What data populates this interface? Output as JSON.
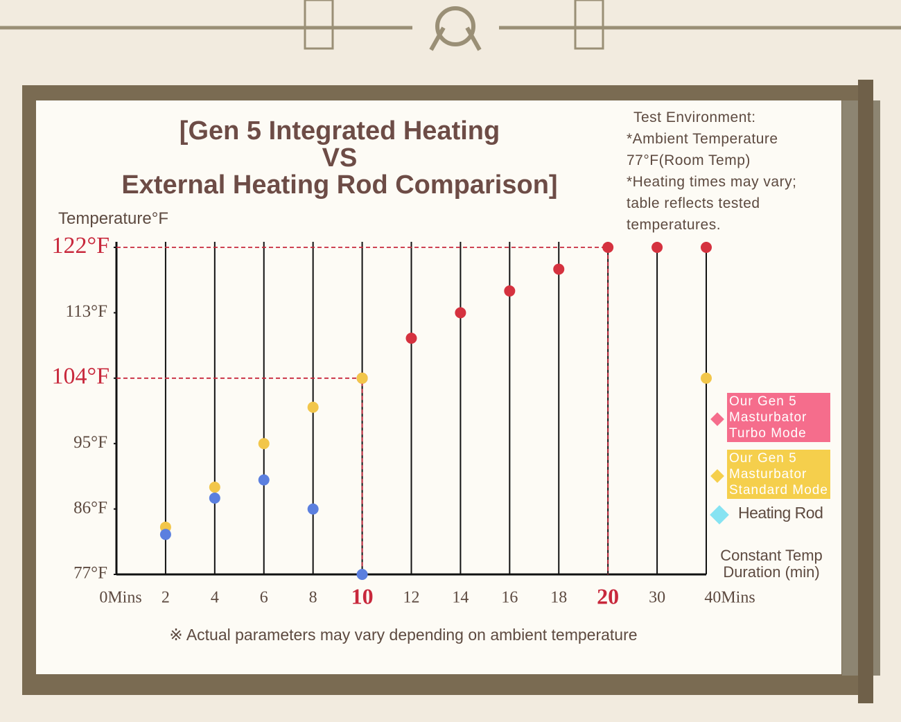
{
  "chart_data": {
    "type": "dot",
    "title": [
      "[Gen 5 Integrated Heating",
      "VS",
      "External Heating Rod Comparison]"
    ],
    "y_label": "Temperature°F",
    "x_label": "Constant Temp Duration (min)",
    "note": [
      "Test Environment:",
      "*Ambient Temperature 77°F(Room Temp)",
      "*Heating times may vary; table reflects tested temperatures."
    ],
    "footnote": "※ Actual parameters may vary depending on ambient temperature",
    "categories": [
      "0Mins",
      "2",
      "4",
      "6",
      "8",
      "10",
      "12",
      "14",
      "16",
      "18",
      "20",
      "30",
      "40Mins"
    ],
    "ylim": [
      77,
      122
    ],
    "yticks": [
      {
        "value": 77,
        "label": "77°F"
      },
      {
        "value": 86,
        "label": "86°F"
      },
      {
        "value": 95,
        "label": "95°F"
      },
      {
        "value": 104,
        "label": "104°F"
      },
      {
        "value": 113,
        "label": "113°F"
      },
      {
        "value": 122,
        "label": "122°F"
      }
    ],
    "guides": [
      {
        "x": "20",
        "y": 122
      },
      {
        "x": "10",
        "y": 104
      }
    ],
    "series": [
      {
        "name": "Our Gen 5 Masturbator Turbo Mode",
        "color": "#d5323f",
        "legend_color": "#f56d8c",
        "values": [
          null,
          null,
          null,
          null,
          null,
          104,
          109.5,
          113,
          116,
          119,
          122,
          122,
          122
        ]
      },
      {
        "name": "Our Gen 5 Masturbator Standard Mode",
        "color": "#f2c64a",
        "legend_color": "#f5cf4c",
        "values": [
          null,
          83.5,
          89,
          95,
          100,
          104,
          null,
          null,
          null,
          null,
          null,
          null,
          104
        ]
      },
      {
        "name": "Heating Rod",
        "color": "#5b7fdf",
        "legend_color": "#86e3f2",
        "values": [
          null,
          82.5,
          87.5,
          90,
          86,
          77,
          null,
          null,
          null,
          null,
          null,
          null,
          null
        ]
      }
    ]
  }
}
